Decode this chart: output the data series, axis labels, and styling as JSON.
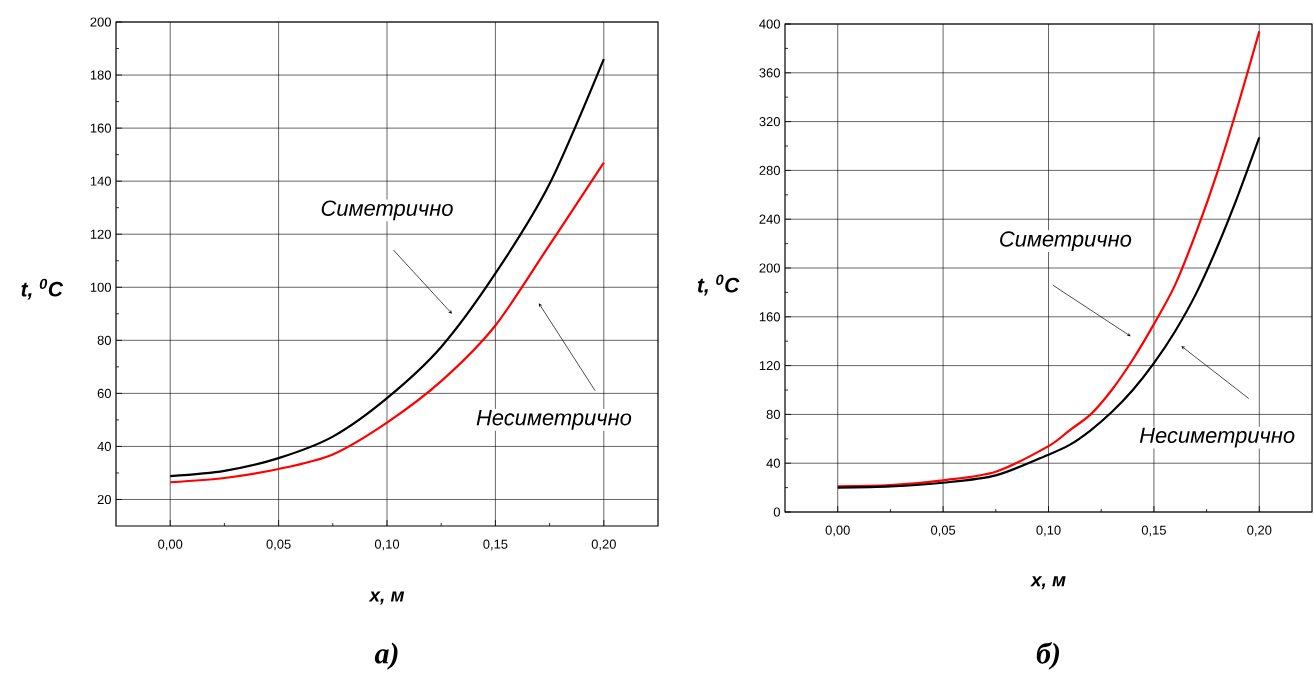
{
  "chart_data": [
    {
      "type": "line",
      "title": "а)",
      "xlabel": "x, м",
      "ylabel": "t, $^{0}$C",
      "grid": true,
      "xlim": [
        -0.025,
        0.225
      ],
      "ylim": [
        10,
        200
      ],
      "xticks": [
        {
          "value": 0,
          "label": "0,00"
        },
        {
          "value": 0.05,
          "label": "0,05"
        },
        {
          "value": 0.1,
          "label": "0,10"
        },
        {
          "value": 0.15,
          "label": "0,15"
        },
        {
          "value": 0.2,
          "label": "0,20"
        }
      ],
      "yticks": [
        20,
        40,
        60,
        80,
        100,
        120,
        140,
        160,
        180,
        200
      ],
      "series": [
        {
          "color": "#000000",
          "x": [
            0,
            0.025,
            0.05,
            0.075,
            0.1,
            0.125,
            0.15,
            0.175,
            0.2
          ],
          "values": [
            28.8,
            30.8,
            35.6,
            43.7,
            58.2,
            77.5,
            105.2,
            139,
            186
          ]
        },
        {
          "color": "#ff0000",
          "x": [
            0,
            0.025,
            0.05,
            0.075,
            0.1,
            0.125,
            0.15,
            0.175,
            0.2
          ],
          "values": [
            26.5,
            28.1,
            31.5,
            37,
            49,
            64.6,
            85.6,
            116,
            147
          ]
        }
      ],
      "annotations": [
        "Симетрично",
        "Несиметрично"
      ]
    },
    {
      "type": "line",
      "title": "б)",
      "xlabel": "x, м",
      "ylabel": "t, $^{0}$C",
      "grid": true,
      "xlim": [
        -0.025,
        0.225
      ],
      "ylim": [
        0,
        400
      ],
      "xticks": [
        {
          "value": 0,
          "label": "0,00"
        },
        {
          "value": 0.05,
          "label": "0,05"
        },
        {
          "value": 0.1,
          "label": "0,10"
        },
        {
          "value": 0.15,
          "label": "0,15"
        },
        {
          "value": 0.2,
          "label": "0,20"
        }
      ],
      "yticks": [
        0,
        40,
        80,
        120,
        160,
        200,
        240,
        280,
        320,
        360,
        400
      ],
      "series": [
        {
          "color": "#ff0000",
          "x": [
            0,
            0.025,
            0.05,
            0.075,
            0.1,
            0.11,
            0.12,
            0.13,
            0.14,
            0.15,
            0.16,
            0.17,
            0.18,
            0.19,
            0.2
          ],
          "values": [
            21,
            22,
            26,
            33,
            54,
            67,
            80,
            100,
            125,
            154,
            186,
            229,
            278,
            334,
            394
          ]
        },
        {
          "color": "#000000",
          "x": [
            0,
            0.025,
            0.05,
            0.075,
            0.1,
            0.11,
            0.12,
            0.13,
            0.14,
            0.15,
            0.16,
            0.17,
            0.18,
            0.19,
            0.2
          ],
          "values": [
            20,
            21,
            24,
            30,
            47,
            55,
            67,
            82,
            100,
            122,
            148,
            179,
            217,
            260,
            307
          ]
        }
      ],
      "annotations": [
        "Симетрично",
        "Несиметрично"
      ]
    }
  ]
}
